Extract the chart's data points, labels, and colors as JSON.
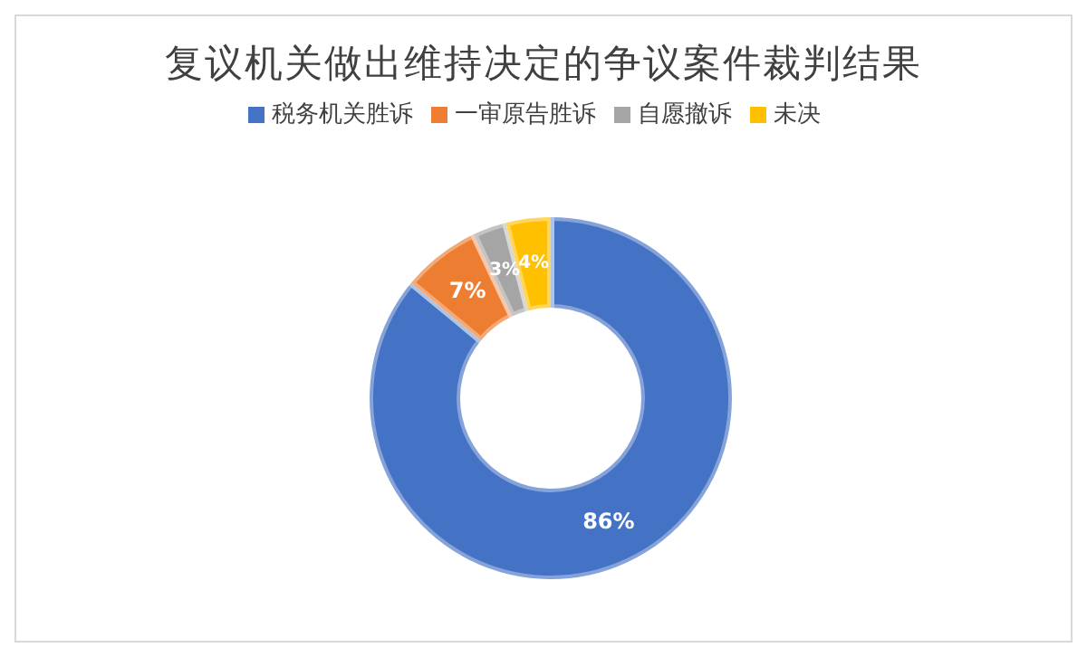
{
  "chart_data": {
    "type": "donut",
    "title": "复议机关做出维持决定的争议案件裁判结果",
    "categories": [
      "税务机关胜诉",
      "一审原告胜诉",
      "自愿撤诉",
      "未决"
    ],
    "values": [
      86,
      7,
      3,
      4
    ],
    "colors": [
      "#4472c4",
      "#ed7d31",
      "#a5a5a5",
      "#ffc000"
    ],
    "value_labels": [
      "86%",
      "7%",
      "3%",
      "4%"
    ],
    "legend": "top"
  }
}
